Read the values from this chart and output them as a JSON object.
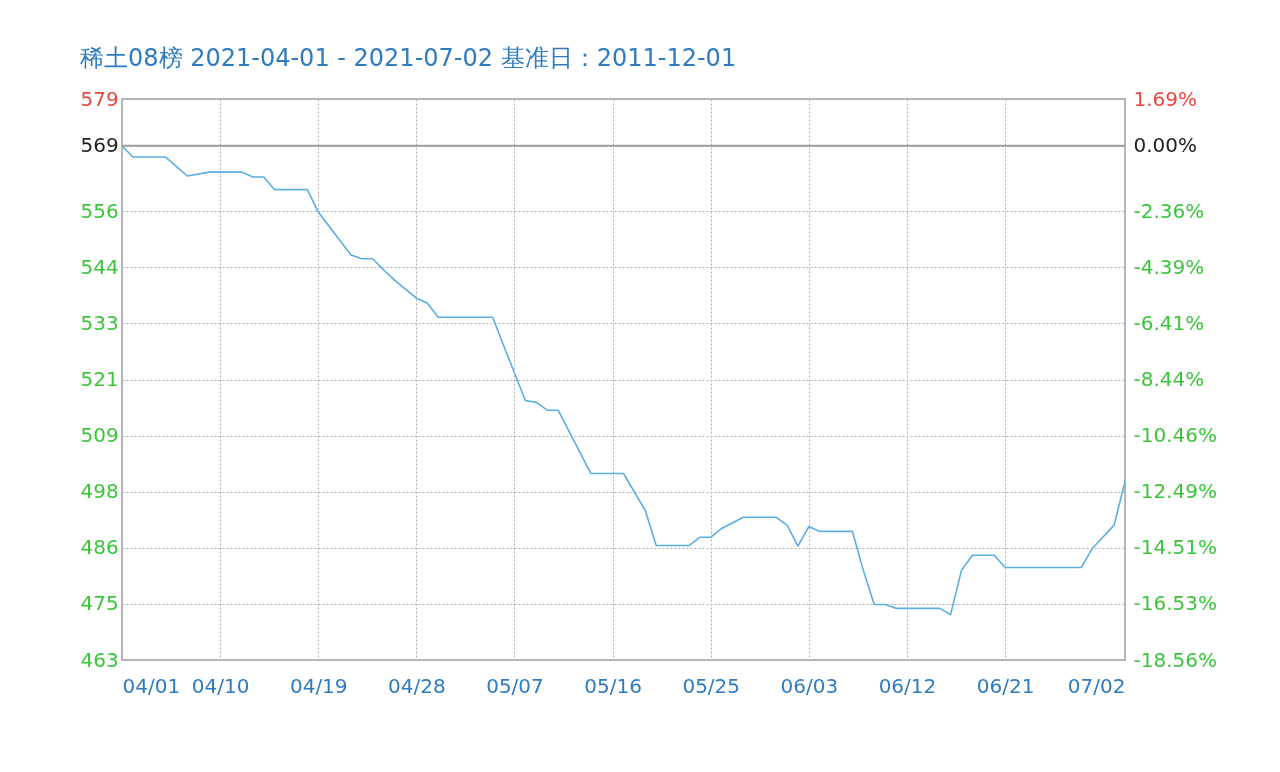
{
  "chart_data": {
    "type": "line",
    "title": "稀土08榜 2021-04-01 - 2021-07-02     基准日：2011-12-01",
    "x": [
      "2021-04-01",
      "2021-04-02",
      "2021-04-05",
      "2021-04-07",
      "2021-04-09",
      "2021-04-12",
      "2021-04-13",
      "2021-04-14",
      "2021-04-15",
      "2021-04-18",
      "2021-04-19",
      "2021-04-22",
      "2021-04-23",
      "2021-04-24",
      "2021-04-25",
      "2021-04-26",
      "2021-04-28",
      "2021-04-29",
      "2021-04-30",
      "2021-05-05",
      "2021-05-06",
      "2021-05-08",
      "2021-05-09",
      "2021-05-10",
      "2021-05-11",
      "2021-05-14",
      "2021-05-17",
      "2021-05-19",
      "2021-05-20",
      "2021-05-23",
      "2021-05-24",
      "2021-05-25",
      "2021-05-26",
      "2021-05-28",
      "2021-05-31",
      "2021-06-01",
      "2021-06-02",
      "2021-06-03",
      "2021-06-04",
      "2021-06-07",
      "2021-06-08",
      "2021-06-09",
      "2021-06-10",
      "2021-06-11",
      "2021-06-15",
      "2021-06-16",
      "2021-06-17",
      "2021-06-18",
      "2021-06-20",
      "2021-06-21",
      "2021-06-28",
      "2021-06-29",
      "2021-07-01",
      "2021-07-02"
    ],
    "series": [
      {
        "color": "#5aaee0",
        "values": [
          569,
          566.7,
          566.7,
          562.8,
          563.6,
          563.6,
          562.6,
          562.6,
          560,
          560,
          555.4,
          546.6,
          545.8,
          545.8,
          543.5,
          541.4,
          537.7,
          536.7,
          533.8,
          533.8,
          528,
          516.7,
          516.3,
          514.7,
          514.7,
          501.7,
          501.7,
          494.1,
          486.9,
          486.9,
          488.6,
          488.6,
          490.4,
          492.7,
          492.7,
          491.1,
          486.8,
          490.8,
          489.8,
          489.8,
          481.8,
          474.8,
          474.8,
          474,
          474,
          472.7,
          481.8,
          484.9,
          484.9,
          482.4,
          482.4,
          486.3,
          491.1,
          500
        ]
      }
    ],
    "xlim": [
      "2021-04-01",
      "2021-07-02"
    ],
    "xticks": [
      {
        "value": "2021-04-01",
        "label": "04/01"
      },
      {
        "value": "2021-04-10",
        "label": "04/10"
      },
      {
        "value": "2021-04-19",
        "label": "04/19"
      },
      {
        "value": "2021-04-28",
        "label": "04/28"
      },
      {
        "value": "2021-05-07",
        "label": "05/07"
      },
      {
        "value": "2021-05-16",
        "label": "05/16"
      },
      {
        "value": "2021-05-25",
        "label": "05/25"
      },
      {
        "value": "2021-06-03",
        "label": "06/03"
      },
      {
        "value": "2021-06-12",
        "label": "06/12"
      },
      {
        "value": "2021-06-21",
        "label": "06/21"
      },
      {
        "value": "2021-07-02",
        "label": "07/02"
      }
    ],
    "ylim": [
      463.39,
      578.62
    ],
    "yticks": [
      {
        "value": 578.62,
        "label": "579"
      },
      569,
      {
        "value": 555.57,
        "label": "556"
      },
      {
        "value": 544.02,
        "label": "544"
      },
      {
        "value": 532.53,
        "label": "533"
      },
      {
        "value": 520.98,
        "label": "521"
      },
      {
        "value": 509.48,
        "label": "509"
      },
      {
        "value": 497.93,
        "label": "498"
      },
      {
        "value": 486.44,
        "label": "486"
      },
      {
        "value": 474.94,
        "label": "475"
      },
      {
        "value": 463.39,
        "label": "463"
      }
    ],
    "y2lim": [
      -18.56,
      1.69
    ],
    "y2ticks": [
      {
        "value": 1.69,
        "label": "1.69%"
      },
      {
        "value": 0,
        "label": "0.00%"
      },
      {
        "value": -2.36,
        "label": "-2.36%"
      },
      {
        "value": -4.39,
        "label": "-4.39%"
      },
      {
        "value": -6.41,
        "label": "-6.41%"
      },
      {
        "value": -8.44,
        "label": "-8.44%"
      },
      {
        "value": -10.46,
        "label": "-10.46%"
      },
      {
        "value": -12.49,
        "label": "-12.49%"
      },
      {
        "value": -14.51,
        "label": "-14.51%"
      },
      {
        "value": -16.53,
        "label": "-16.53%"
      },
      {
        "value": -18.56,
        "label": "-18.56%"
      }
    ],
    "ref_lines": [
      {
        "axis": "y",
        "value": 569,
        "color": "#a0a0a0"
      }
    ],
    "grid": true
  }
}
